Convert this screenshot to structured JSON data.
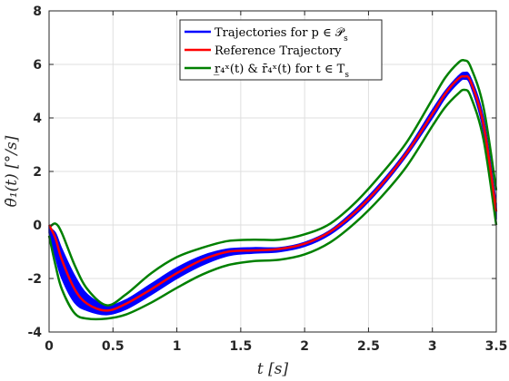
{
  "chart_data": {
    "type": "line",
    "title": "",
    "xlabel": "t [s]",
    "ylabel": "θ̇₁(t) [°/s]",
    "xlim": [
      0,
      3.5
    ],
    "ylim": [
      -4,
      8
    ],
    "x_ticks": [
      0,
      0.5,
      1,
      1.5,
      2,
      2.5,
      3,
      3.5
    ],
    "x_tick_labels": [
      "0",
      "0.5",
      "1",
      "1.5",
      "2",
      "2.5",
      "3",
      "3.5"
    ],
    "y_ticks": [
      -4,
      -2,
      0,
      2,
      4,
      6,
      8
    ],
    "y_tick_labels": [
      "-4",
      "-2",
      "0",
      "2",
      "4",
      "6",
      "8"
    ],
    "grid": true,
    "legend_position": "top-center",
    "series": [
      {
        "name": "Trajectories for p ∈ 𝒫s",
        "color": "#0000ff",
        "style": "band",
        "x": [
          0,
          0.05,
          0.1,
          0.2,
          0.3,
          0.45,
          0.6,
          0.8,
          1.0,
          1.2,
          1.4,
          1.6,
          1.8,
          2.0,
          2.2,
          2.4,
          2.6,
          2.8,
          3.0,
          3.1,
          3.2,
          3.25,
          3.3,
          3.4,
          3.5
        ],
        "upper": [
          -0.1,
          -0.3,
          -0.9,
          -1.9,
          -2.6,
          -3.0,
          -2.8,
          -2.2,
          -1.6,
          -1.15,
          -0.9,
          -0.85,
          -0.85,
          -0.65,
          -0.2,
          0.6,
          1.6,
          2.8,
          4.3,
          5.0,
          5.55,
          5.7,
          5.5,
          4.0,
          0.8
        ],
        "lower": [
          -0.3,
          -1.2,
          -2.0,
          -2.9,
          -3.2,
          -3.35,
          -3.15,
          -2.6,
          -2.0,
          -1.5,
          -1.15,
          -1.05,
          -1.0,
          -0.8,
          -0.35,
          0.4,
          1.4,
          2.6,
          4.0,
          4.75,
          5.3,
          5.45,
          5.2,
          3.5,
          0.2
        ]
      },
      {
        "name": "Reference Trajectory",
        "color": "#ff0000",
        "x": [
          0,
          0.05,
          0.1,
          0.2,
          0.3,
          0.45,
          0.6,
          0.8,
          1.0,
          1.2,
          1.4,
          1.6,
          1.8,
          2.0,
          2.2,
          2.4,
          2.6,
          2.8,
          3.0,
          3.1,
          3.2,
          3.25,
          3.3,
          3.4,
          3.5
        ],
        "y": [
          0,
          -0.5,
          -1.3,
          -2.4,
          -2.95,
          -3.2,
          -2.95,
          -2.4,
          -1.8,
          -1.3,
          -1.0,
          -0.95,
          -0.9,
          -0.7,
          -0.25,
          0.5,
          1.5,
          2.7,
          4.15,
          4.9,
          5.45,
          5.55,
          5.35,
          3.75,
          0.5
        ]
      },
      {
        "name": "r4x(t) & r4x(t) for t ∈ Ts (upper)",
        "color": "#008000",
        "x": [
          0,
          0.05,
          0.1,
          0.2,
          0.3,
          0.45,
          0.6,
          0.8,
          1.0,
          1.2,
          1.4,
          1.6,
          1.8,
          2.0,
          2.2,
          2.4,
          2.6,
          2.8,
          3.0,
          3.1,
          3.2,
          3.25,
          3.3,
          3.4,
          3.5
        ],
        "y": [
          -0.1,
          0.05,
          -0.3,
          -1.5,
          -2.4,
          -3.0,
          -2.6,
          -1.8,
          -1.2,
          -0.85,
          -0.6,
          -0.55,
          -0.55,
          -0.35,
          0.05,
          0.85,
          1.9,
          3.1,
          4.7,
          5.5,
          6.05,
          6.15,
          5.9,
          4.4,
          1.3
        ]
      },
      {
        "name": "r4x(t) & r4x(t) for t ∈ Ts (lower)",
        "color": "#008000",
        "x": [
          0,
          0.05,
          0.1,
          0.2,
          0.3,
          0.45,
          0.6,
          0.8,
          1.0,
          1.2,
          1.4,
          1.6,
          1.8,
          2.0,
          2.2,
          2.4,
          2.6,
          2.8,
          3.0,
          3.1,
          3.2,
          3.25,
          3.3,
          3.4,
          3.5
        ],
        "y": [
          -0.4,
          -1.5,
          -2.4,
          -3.3,
          -3.5,
          -3.5,
          -3.35,
          -2.9,
          -2.35,
          -1.85,
          -1.5,
          -1.35,
          -1.3,
          -1.1,
          -0.65,
          0.1,
          1.05,
          2.2,
          3.7,
          4.4,
          4.9,
          5.05,
          4.8,
          3.2,
          0.0
        ]
      }
    ],
    "legend": [
      {
        "label": "Trajectories for p ∈ 𝒫",
        "sub": "s",
        "color": "#0000ff"
      },
      {
        "label": "Reference Trajectory",
        "sub": "",
        "color": "#ff0000"
      },
      {
        "label": "r̲₄ˣ(t) & r̄₄ˣ(t) for t ∈ T",
        "sub": "s",
        "color": "#008000"
      }
    ]
  }
}
